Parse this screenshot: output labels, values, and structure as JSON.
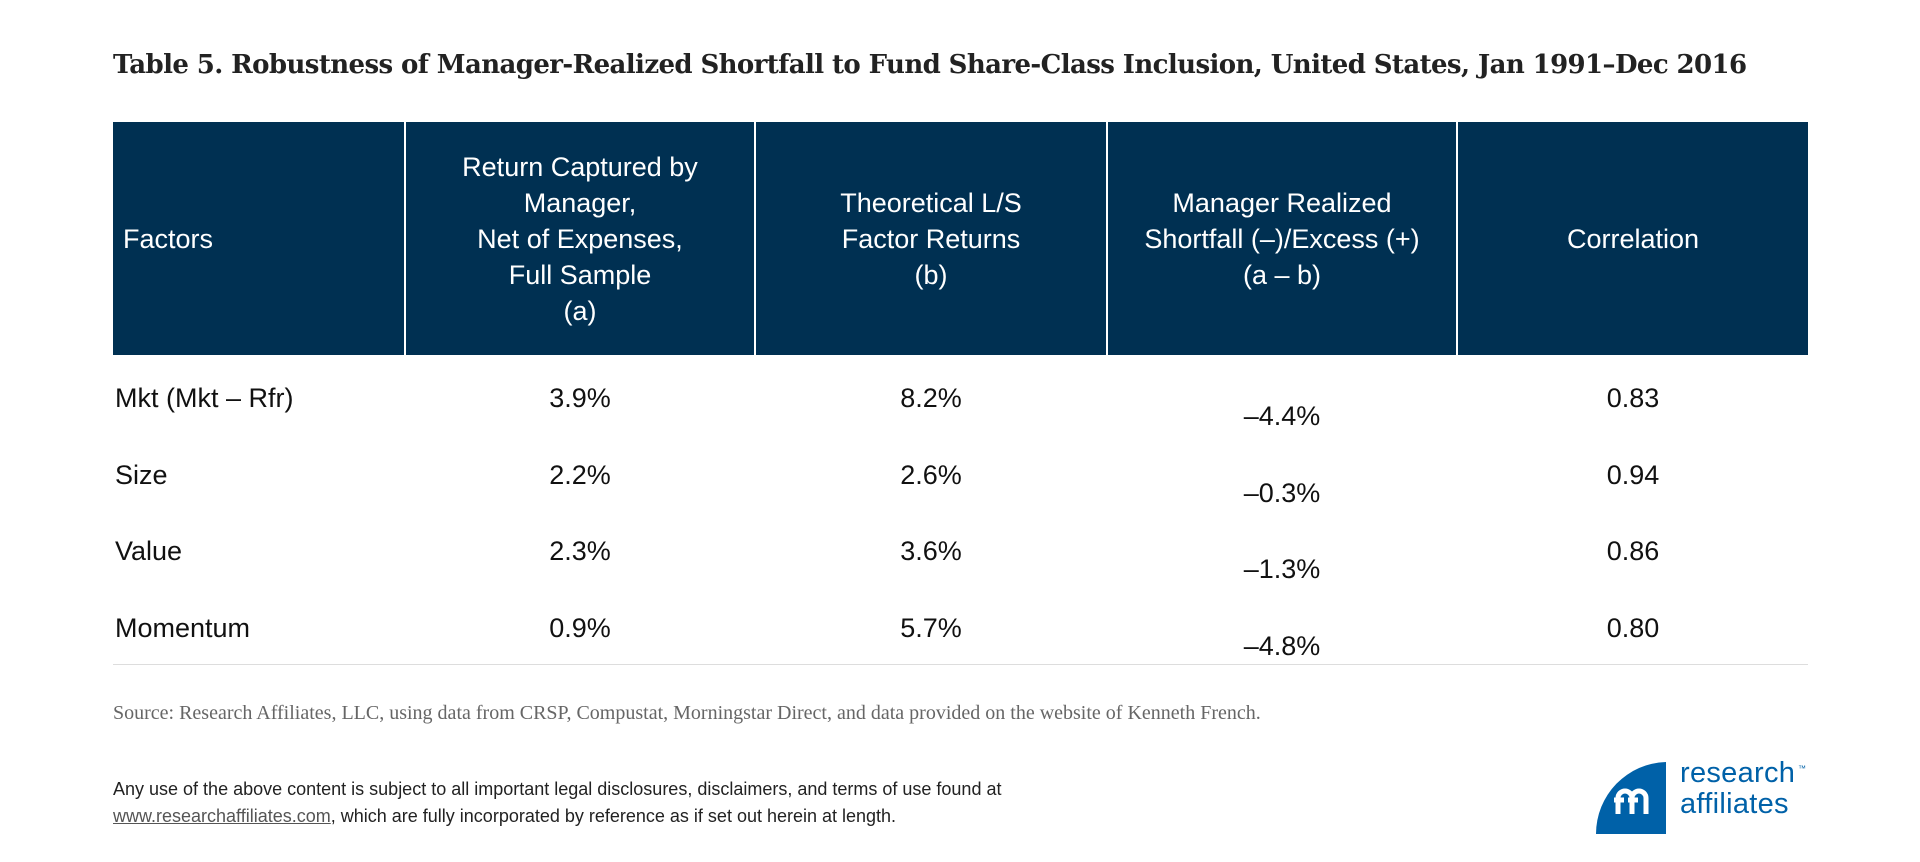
{
  "title": "Table 5. Robustness of Manager-Realized Shortfall to Fund Share-Class Inclusion, United States, Jan 1991–Dec 2016",
  "table": {
    "header_color": "#003052",
    "headers": [
      "Factors",
      "Return Captured by\nManager,\nNet of Expenses,\nFull Sample\n(a)",
      "Theoretical L/S\nFactor Returns\n(b)",
      "Manager Realized\nShortfall (–)/Excess (+)\n(a – b)",
      "Correlation"
    ],
    "rows": [
      [
        "Mkt (Mkt – Rfr)",
        "3.9%",
        "8.2%",
        "–4.4%",
        "0.83"
      ],
      [
        "Size",
        "2.2%",
        "2.6%",
        "–0.3%",
        "0.94"
      ],
      [
        "Value",
        "2.3%",
        "3.6%",
        "–1.3%",
        "0.86"
      ],
      [
        "Momentum",
        "0.9%",
        "5.7%",
        "–4.8%",
        "0.80"
      ]
    ]
  },
  "source": "Source: Research Affiliates, LLC, using data from CRSP, Compustat, Morningstar Direct, and  data provided on the website of Kenneth French.",
  "disclaimer": {
    "line1": "Any use of the above content is subject to all important legal disclosures, disclaimers, and terms of use found at",
    "link": "www.researchaffiliates.com",
    "line2_rest": ", which are fully incorporated by reference as if set out herein at length."
  },
  "logo": {
    "line1": "research",
    "line2": "affiliates",
    "tm": "™",
    "color": "#0061a8"
  }
}
